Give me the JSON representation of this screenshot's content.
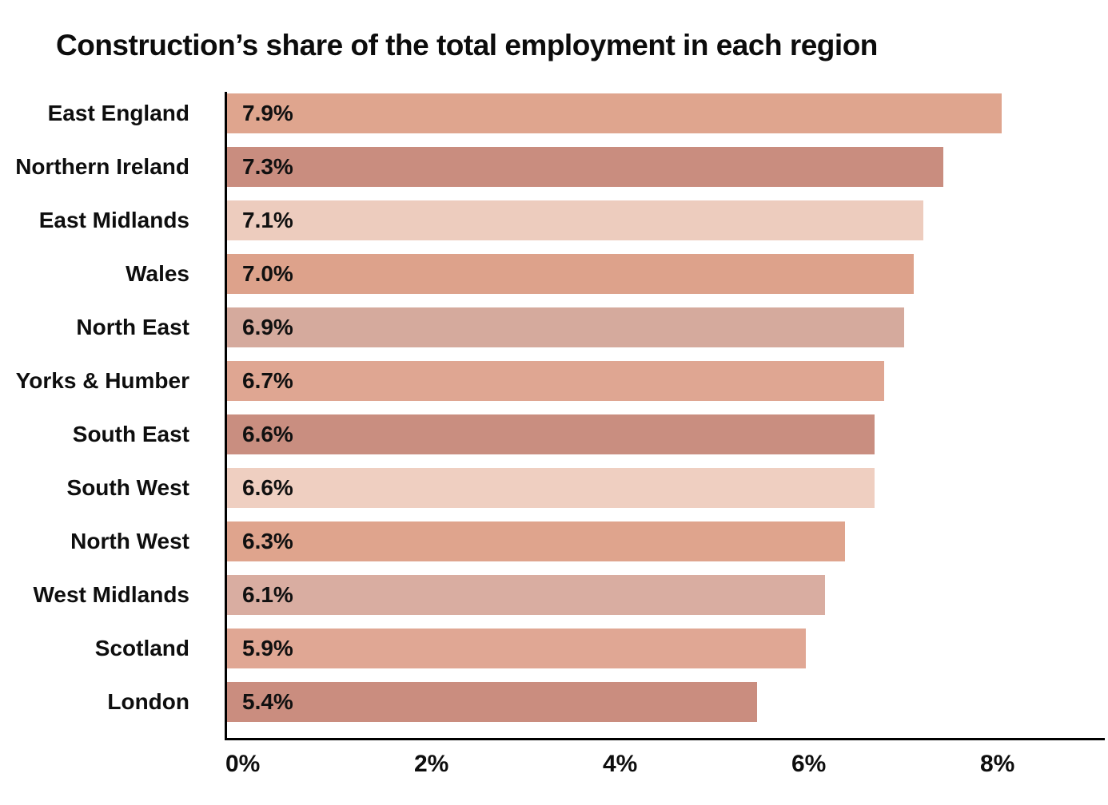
{
  "title": "Construction’s share of the total employment in each region",
  "colors": {
    "background": "#ffffff",
    "axis": "#000000",
    "text": "#0e0e0e"
  },
  "chart_data": {
    "type": "bar",
    "orientation": "horizontal",
    "title": "Construction’s share of the total employment in each region",
    "categories": [
      "East England",
      "Northern Ireland",
      "East Midlands",
      "Wales",
      "North East",
      "Yorks & Humber",
      "South East",
      "South West",
      "North West",
      "West Midlands",
      "Scotland",
      "London"
    ],
    "values": [
      7.9,
      7.3,
      7.1,
      7.0,
      6.9,
      6.7,
      6.6,
      6.6,
      6.3,
      6.1,
      5.9,
      5.4
    ],
    "value_labels": [
      "7.9%",
      "7.3%",
      "7.1%",
      "7.0%",
      "6.9%",
      "6.7%",
      "6.6%",
      "6.6%",
      "6.3%",
      "6.1%",
      "5.9%",
      "5.4%"
    ],
    "bar_colors": [
      "#DFA58E",
      "#C98D7F",
      "#EDCCBE",
      "#DDA28B",
      "#D5AA9D",
      "#DFA692",
      "#C98E80",
      "#EFCFC1",
      "#DFA48D",
      "#D9ADA1",
      "#E0A794",
      "#CA8D7F"
    ],
    "value_label_position": "inside-start",
    "xlabel": "",
    "ylabel": "",
    "x_ticks": [
      {
        "value": 0,
        "label": "0%"
      },
      {
        "value": 2,
        "label": "2%"
      },
      {
        "value": 4,
        "label": "4%"
      },
      {
        "value": 6,
        "label": "6%"
      },
      {
        "value": 8,
        "label": "8%"
      }
    ],
    "xlim": [
      0,
      9.3
    ],
    "grid": false,
    "legend": "none"
  }
}
